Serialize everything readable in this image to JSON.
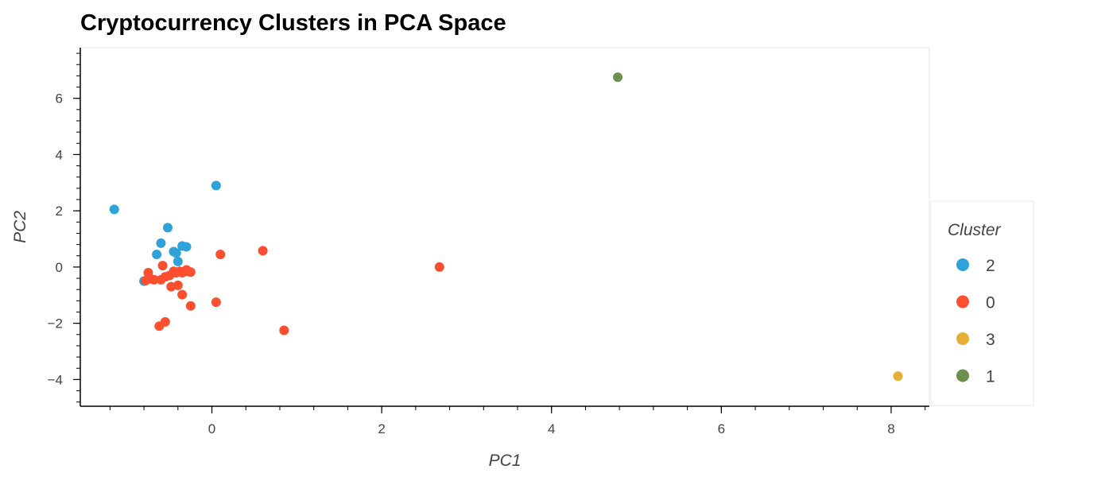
{
  "chart_data": {
    "type": "scatter",
    "title": "Cryptocurrency Clusters in PCA Space",
    "xlabel": "PC1",
    "ylabel": "PC2",
    "xlim": [
      -1.55,
      8.45
    ],
    "ylim": [
      -4.95,
      7.8
    ],
    "xticks": [
      0,
      2,
      4,
      6,
      8
    ],
    "yticks": [
      -4,
      -2,
      0,
      2,
      4,
      6
    ],
    "grid": false,
    "legend_title": "Cluster",
    "legend_position": "right",
    "series": [
      {
        "name": "2",
        "color": "#30a2da",
        "points": [
          [
            -1.15,
            2.05
          ],
          [
            0.05,
            2.9
          ],
          [
            -0.52,
            1.4
          ],
          [
            -0.6,
            0.85
          ],
          [
            -0.65,
            0.45
          ],
          [
            -0.45,
            0.55
          ],
          [
            -0.42,
            0.5
          ],
          [
            -0.35,
            0.75
          ],
          [
            -0.3,
            0.72
          ],
          [
            -0.4,
            0.2
          ],
          [
            -0.8,
            -0.5
          ]
        ]
      },
      {
        "name": "0",
        "color": "#fc4f30",
        "points": [
          [
            0.1,
            0.45
          ],
          [
            0.6,
            0.58
          ],
          [
            2.68,
            0.0
          ],
          [
            -0.75,
            -0.2
          ],
          [
            -0.78,
            -0.48
          ],
          [
            -0.72,
            -0.42
          ],
          [
            -0.68,
            -0.45
          ],
          [
            -0.6,
            -0.45
          ],
          [
            -0.58,
            0.05
          ],
          [
            -0.55,
            -0.35
          ],
          [
            -0.5,
            -0.3
          ],
          [
            -0.45,
            -0.15
          ],
          [
            -0.42,
            -0.2
          ],
          [
            -0.38,
            -0.15
          ],
          [
            -0.35,
            -0.2
          ],
          [
            -0.3,
            -0.1
          ],
          [
            -0.3,
            -0.15
          ],
          [
            -0.25,
            -0.18
          ],
          [
            -0.48,
            -0.7
          ],
          [
            -0.4,
            -0.65
          ],
          [
            -0.35,
            -0.98
          ],
          [
            -0.25,
            -1.38
          ],
          [
            0.05,
            -1.25
          ],
          [
            0.85,
            -2.25
          ],
          [
            -0.55,
            -1.95
          ],
          [
            -0.62,
            -2.1
          ]
        ]
      },
      {
        "name": "3",
        "color": "#e5ae38",
        "points": [
          [
            8.08,
            -3.88
          ]
        ]
      },
      {
        "name": "1",
        "color": "#6d904f",
        "points": [
          [
            4.78,
            6.75
          ]
        ]
      }
    ]
  }
}
